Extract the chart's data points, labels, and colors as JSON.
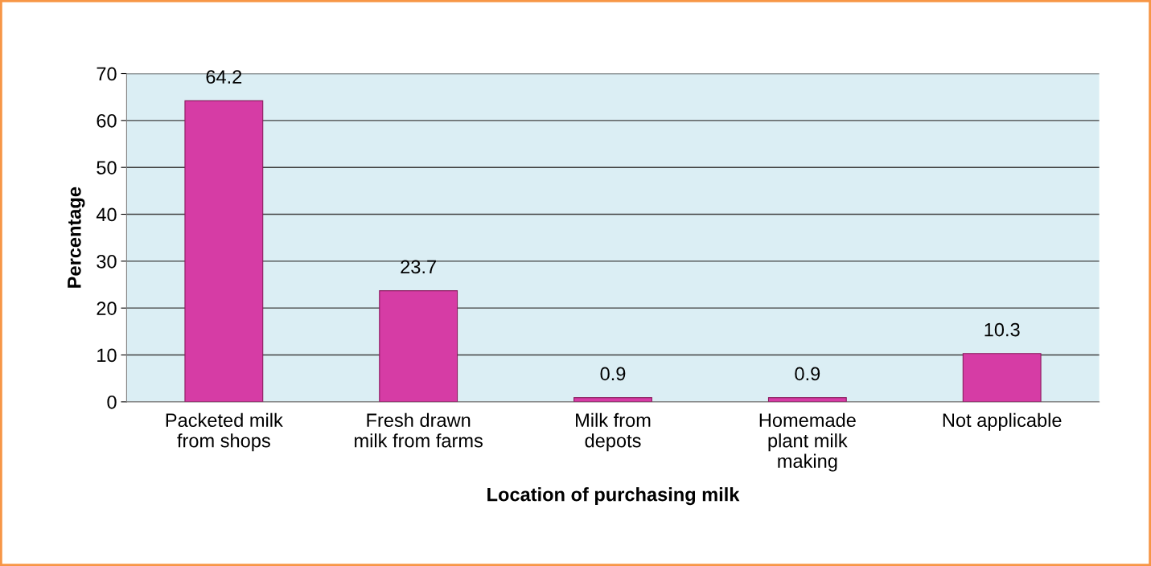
{
  "chart_data": {
    "type": "bar",
    "xlabel": "Location of purchasing milk",
    "ylabel": "Percentage",
    "categories": [
      "Packeted milk\nfrom shops",
      "Fresh drawn\nmilk from farms",
      "Milk from\ndepots",
      "Homemade\nplant milk\nmaking",
      "Not applicable"
    ],
    "values": [
      64.2,
      23.7,
      0.9,
      0.9,
      10.3
    ],
    "color": "#d63ca5",
    "ylim": [
      0,
      70
    ],
    "yticks": [
      0,
      10,
      20,
      30,
      40,
      50,
      60,
      70
    ],
    "grid": "y",
    "data_labels": true,
    "legend": false
  }
}
